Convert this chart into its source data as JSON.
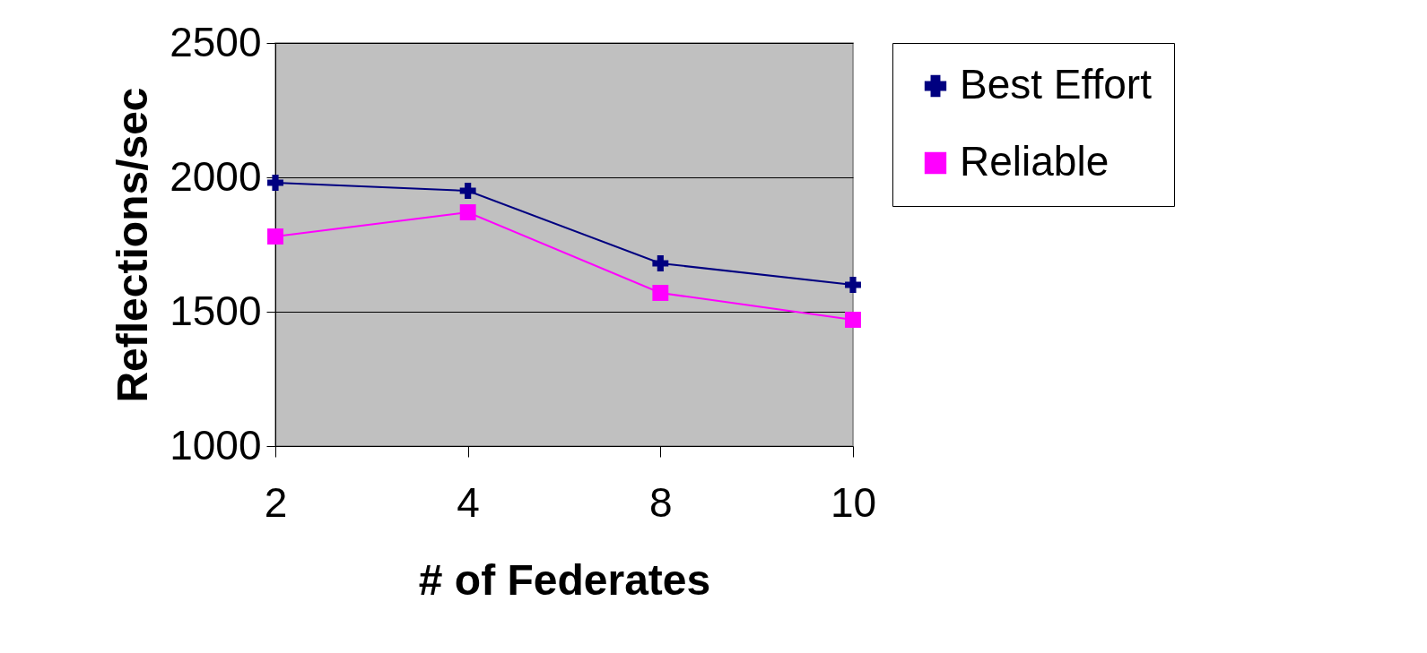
{
  "chart_data": {
    "type": "line",
    "xlabel": "# of Federates",
    "ylabel": "Reflections/sec",
    "categories": [
      "2",
      "4",
      "8",
      "10"
    ],
    "series": [
      {
        "name": "Best Effort",
        "color": "#000080",
        "marker": "cross",
        "values": [
          1980,
          1950,
          1680,
          1600
        ]
      },
      {
        "name": "Reliable",
        "color": "#ff00ff",
        "marker": "square",
        "values": [
          1780,
          1870,
          1570,
          1470
        ]
      }
    ],
    "ylim": [
      1000,
      2500
    ],
    "yticks": [
      1000,
      1500,
      2000,
      2500
    ],
    "grid": "y",
    "legend": "right"
  }
}
